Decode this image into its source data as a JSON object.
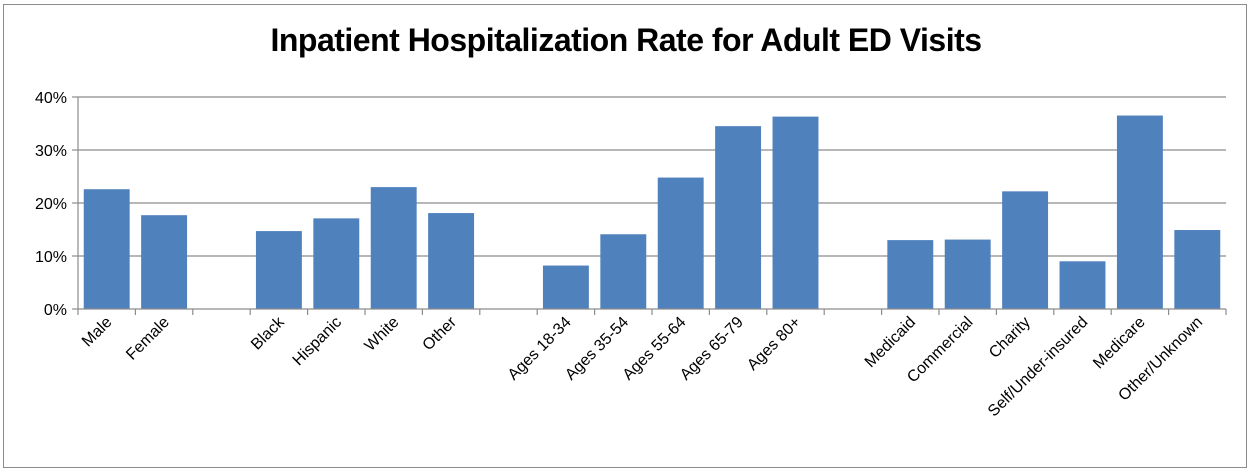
{
  "chart_data": {
    "type": "bar",
    "title": "Inpatient Hospitalization Rate for Adult ED Visits",
    "xlabel": "",
    "ylabel": "",
    "ylim": [
      0,
      40
    ],
    "y_ticks": [
      "0%",
      "10%",
      "20%",
      "30%",
      "40%"
    ],
    "grid": true,
    "bar_color": "#4F81BD",
    "categories": [
      "Male",
      "Female",
      "",
      "Black",
      "Hispanic",
      "White",
      "Other",
      "",
      "Ages 18-34",
      "Ages 35-54",
      "Ages 55-64",
      "Ages 65-79",
      "Ages 80+",
      "",
      "Medicaid",
      "Commercial",
      "Charity",
      "Self/Under-insured",
      "Medicare",
      "Other/Unknown"
    ],
    "values": [
      22.6,
      17.7,
      null,
      14.7,
      17.1,
      23.0,
      18.1,
      null,
      8.2,
      14.1,
      24.8,
      34.5,
      36.3,
      null,
      13.0,
      13.1,
      22.2,
      9.0,
      36.5,
      14.9
    ]
  }
}
